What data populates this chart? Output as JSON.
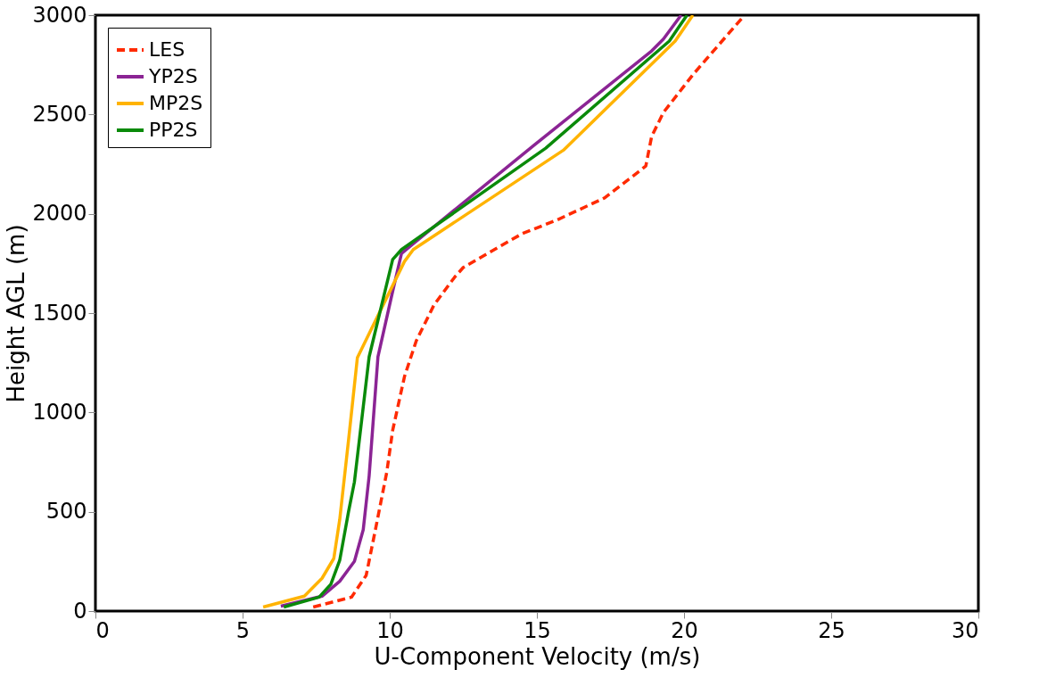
{
  "chart_data": {
    "type": "line",
    "xlabel": "U-Component Velocity (m/s)",
    "ylabel": "Height AGL (m)",
    "xlim": [
      0,
      30
    ],
    "xticks": [
      0,
      5,
      10,
      15,
      20,
      25,
      30
    ],
    "ylim": [
      0,
      3000
    ],
    "yticks": [
      0,
      500,
      1000,
      1500,
      2000,
      2500,
      3000
    ],
    "grid": false,
    "legend": "top left",
    "series": [
      {
        "name": "LES",
        "color": "#ff2a00",
        "line_style": "dashed",
        "x": [
          7.4,
          8.7,
          9.2,
          9.5,
          9.9,
          10.1,
          10.5,
          10.9,
          11.5,
          12.2,
          12.5,
          14.5,
          15.7,
          17.3,
          18.7,
          18.9,
          19.3,
          20.3,
          21.0,
          22.0
        ],
        "values": [
          20,
          70,
          180,
          400,
          700,
          910,
          1180,
          1360,
          1540,
          1680,
          1730,
          1900,
          1970,
          2080,
          2240,
          2390,
          2510,
          2700,
          2820,
          2990
        ]
      },
      {
        "name": "YP2S",
        "color": "#8b2494",
        "line_style": "solid",
        "x": [
          6.3,
          7.7,
          8.3,
          8.8,
          9.1,
          9.3,
          9.6,
          10.1,
          10.4,
          10.8,
          14.9,
          18.9,
          19.3,
          19.9
        ],
        "values": [
          25,
          75,
          150,
          250,
          410,
          680,
          1280,
          1610,
          1800,
          1850,
          2345,
          2820,
          2880,
          3000
        ]
      },
      {
        "name": "MP2S",
        "color": "#ffb300",
        "line_style": "solid",
        "x": [
          5.7,
          7.1,
          7.7,
          8.1,
          8.3,
          8.6,
          8.9,
          10.5,
          10.8,
          15.9,
          19.7,
          20.3
        ],
        "values": [
          20,
          75,
          165,
          265,
          460,
          860,
          1275,
          1760,
          1820,
          2320,
          2870,
          3000
        ]
      },
      {
        "name": "PP2S",
        "color": "#0a8a0a",
        "line_style": "solid",
        "x": [
          6.4,
          7.6,
          8.0,
          8.3,
          8.6,
          8.8,
          9.3,
          10.1,
          10.4,
          15.3,
          19.5,
          20.1
        ],
        "values": [
          20,
          70,
          135,
          255,
          500,
          650,
          1280,
          1770,
          1820,
          2330,
          2870,
          3000
        ]
      }
    ]
  }
}
